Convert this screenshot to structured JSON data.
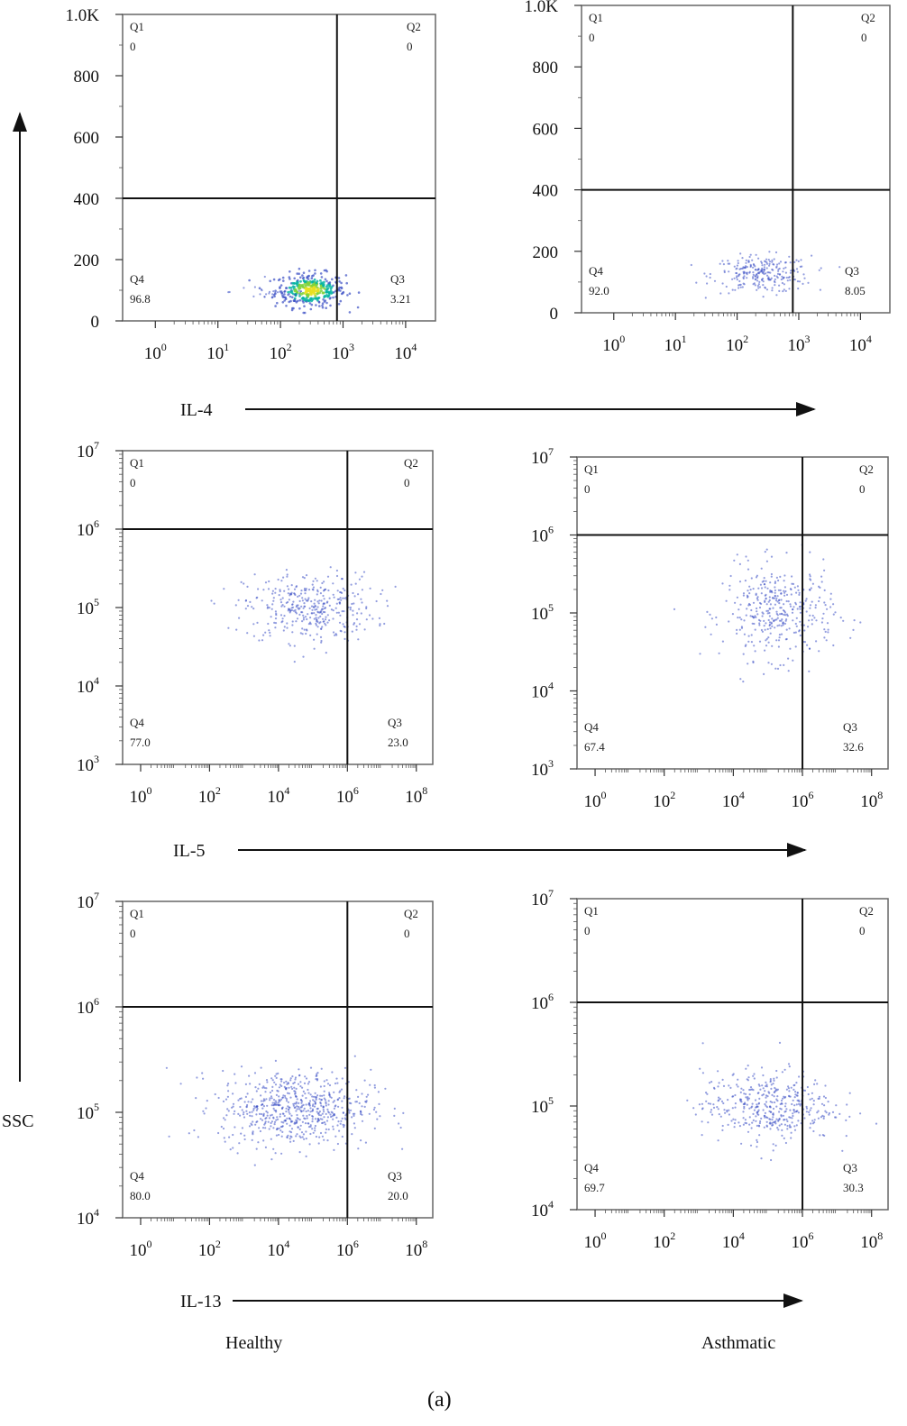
{
  "figure": {
    "y_axis_label": "SSC",
    "group_labels": [
      "Healthy",
      "Asthmatic"
    ],
    "panel_tag": "(a)",
    "point_color": "#3a4fc4",
    "dense_colors": [
      "#00b3a0",
      "#7fd23c",
      "#e8e020"
    ]
  },
  "chart_data": [
    {
      "type": "scatter",
      "marker": "IL-4",
      "group": "Healthy",
      "xlabel": "IL-4",
      "ylabel": "SSC",
      "x_scale": "log",
      "y_scale": "linear",
      "xlim": [
        0.3,
        30000
      ],
      "ylim": [
        0,
        1000
      ],
      "x_ticks": [
        "10^0",
        "10^1",
        "10^2",
        "10^3",
        "10^4"
      ],
      "y_ticks": [
        "0",
        "200",
        "400",
        "600",
        "800",
        "1.0K"
      ],
      "gate": {
        "x": 800,
        "y": 400
      },
      "quadrants": {
        "Q1": "0",
        "Q2": "0",
        "Q3": "3.21",
        "Q4": "96.8"
      },
      "clusters": [
        {
          "x_center": 300,
          "y_center": 100,
          "x_spread_decades": 0.28,
          "y_spread": 28,
          "count": 340,
          "density_colored": true
        },
        {
          "x_center": 80,
          "y_center": 95,
          "x_spread_decades": 0.35,
          "y_spread": 15,
          "count": 30
        }
      ]
    },
    {
      "type": "scatter",
      "marker": "IL-4",
      "group": "Asthmatic",
      "xlabel": "IL-4",
      "ylabel": "SSC",
      "x_scale": "log",
      "y_scale": "linear",
      "xlim": [
        0.3,
        30000
      ],
      "ylim": [
        0,
        1000
      ],
      "x_ticks": [
        "10^0",
        "10^1",
        "10^2",
        "10^3",
        "10^4"
      ],
      "y_ticks": [
        "0",
        "200",
        "400",
        "600",
        "800",
        "1.0K"
      ],
      "gate": {
        "x": 800,
        "y": 400
      },
      "quadrants": {
        "Q1": "0",
        "Q2": "0",
        "Q3": "8.05",
        "Q4": "92.0"
      },
      "clusters": [
        {
          "x_center": 250,
          "y_center": 125,
          "x_spread_decades": 0.4,
          "y_spread": 30,
          "count": 260
        }
      ]
    },
    {
      "type": "scatter",
      "marker": "IL-5",
      "group": "Healthy",
      "xlabel": "IL-5",
      "ylabel": "SSC",
      "x_scale": "log",
      "y_scale": "log",
      "xlim": [
        0.3,
        300000000
      ],
      "ylim": [
        1000,
        10000000
      ],
      "x_ticks": [
        "10^0",
        "10^2",
        "10^4",
        "10^6",
        "10^8"
      ],
      "y_ticks": [
        "10^3",
        "10^4",
        "10^5",
        "10^6",
        "10^7"
      ],
      "gate": {
        "x": 1000000,
        "y": 1000000
      },
      "quadrants": {
        "Q1": "0",
        "Q2": "0",
        "Q3": "23.0",
        "Q4": "77.0"
      },
      "clusters": [
        {
          "x_center": 80000,
          "y_center": 100000,
          "x_spread_decades": 0.95,
          "y_spread_decades": 0.22,
          "count": 380
        }
      ]
    },
    {
      "type": "scatter",
      "marker": "IL-5",
      "group": "Asthmatic",
      "xlabel": "IL-5",
      "ylabel": "SSC",
      "x_scale": "log",
      "y_scale": "log",
      "xlim": [
        0.3,
        300000000
      ],
      "ylim": [
        1000,
        10000000
      ],
      "x_ticks": [
        "10^0",
        "10^2",
        "10^4",
        "10^6",
        "10^8"
      ],
      "y_ticks": [
        "10^3",
        "10^4",
        "10^5",
        "10^6",
        "10^7"
      ],
      "gate": {
        "x": 1000000,
        "y": 1000000
      },
      "quadrants": {
        "Q1": "0",
        "Q2": "0",
        "Q3": "32.6",
        "Q4": "67.4"
      },
      "clusters": [
        {
          "x_center": 200000,
          "y_center": 100000,
          "x_spread_decades": 0.8,
          "y_spread_decades": 0.3,
          "count": 380
        }
      ]
    },
    {
      "type": "scatter",
      "marker": "IL-13",
      "group": "Healthy",
      "xlabel": "IL-13",
      "ylabel": "SSC",
      "x_scale": "log",
      "y_scale": "log",
      "xlim": [
        0.3,
        300000000
      ],
      "ylim": [
        10000,
        10000000
      ],
      "x_ticks": [
        "10^0",
        "10^2",
        "10^4",
        "10^6",
        "10^8"
      ],
      "y_ticks": [
        "10^4",
        "10^5",
        "10^6",
        "10^7"
      ],
      "gate": {
        "x": 1000000,
        "y": 1000000
      },
      "quadrants": {
        "Q1": "0",
        "Q2": "0",
        "Q3": "20.0",
        "Q4": "80.0"
      },
      "clusters": [
        {
          "x_center": 30000,
          "y_center": 110000,
          "x_spread_decades": 1.1,
          "y_spread_decades": 0.18,
          "count": 650
        }
      ]
    },
    {
      "type": "scatter",
      "marker": "IL-13",
      "group": "Asthmatic",
      "xlabel": "IL-13",
      "ylabel": "SSC",
      "x_scale": "log",
      "y_scale": "log",
      "xlim": [
        0.3,
        300000000
      ],
      "ylim": [
        10000,
        10000000
      ],
      "x_ticks": [
        "10^0",
        "10^2",
        "10^4",
        "10^6",
        "10^8"
      ],
      "y_ticks": [
        "10^4",
        "10^5",
        "10^6",
        "10^7"
      ],
      "gate": {
        "x": 1000000,
        "y": 1000000
      },
      "quadrants": {
        "Q1": "0",
        "Q2": "0",
        "Q3": "30.3",
        "Q4": "69.7"
      },
      "clusters": [
        {
          "x_center": 100000,
          "y_center": 100000,
          "x_spread_decades": 0.95,
          "y_spread_decades": 0.17,
          "count": 420
        }
      ]
    }
  ]
}
